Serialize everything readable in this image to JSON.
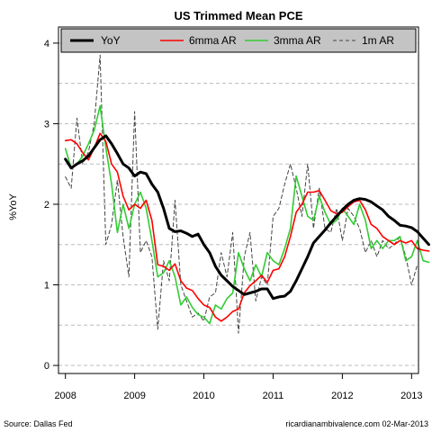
{
  "chart_data": {
    "type": "line",
    "title": "US Trimmed Mean PCE",
    "xlabel": "",
    "ylabel": "%YoY",
    "xlim": [
      2007.9,
      2013.1
    ],
    "ylim": [
      -0.1,
      4.2
    ],
    "x_ticks": [
      2008,
      2009,
      2010,
      2011,
      2012,
      2013
    ],
    "y_ticks": [
      0,
      1,
      2,
      3,
      4
    ],
    "y_gridlines": [
      0,
      0.5,
      1,
      1.5,
      2,
      2.5,
      3,
      3.5,
      4
    ],
    "x_start": 2008.0,
    "x_step": 0.08333,
    "legend_position": "top",
    "series": [
      {
        "name": "YoY",
        "color": "#000000",
        "style": "solid-thick",
        "values": [
          2.56,
          2.45,
          2.5,
          2.54,
          2.6,
          2.7,
          2.8,
          2.85,
          2.75,
          2.63,
          2.5,
          2.45,
          2.35,
          2.4,
          2.38,
          2.25,
          2.15,
          1.95,
          1.7,
          1.66,
          1.67,
          1.64,
          1.6,
          1.63,
          1.5,
          1.4,
          1.23,
          1.12,
          1.05,
          0.98,
          0.93,
          0.88,
          0.9,
          0.92,
          0.95,
          0.95,
          0.83,
          0.85,
          0.86,
          0.92,
          1.05,
          1.2,
          1.35,
          1.52,
          1.6,
          1.68,
          1.77,
          1.85,
          1.93,
          2.0,
          2.05,
          2.07,
          2.06,
          2.03,
          1.98,
          1.93,
          1.85,
          1.8,
          1.74,
          1.73,
          1.71,
          1.66,
          1.58,
          1.5
        ]
      },
      {
        "name": "6mma AR",
        "color": "#ff0000",
        "style": "solid",
        "values": [
          2.79,
          2.8,
          2.75,
          2.64,
          2.55,
          2.7,
          2.88,
          2.78,
          2.5,
          2.4,
          2.1,
          1.93,
          2.0,
          1.95,
          2.05,
          1.8,
          1.25,
          1.23,
          1.18,
          1.26,
          1.05,
          0.96,
          0.93,
          0.83,
          0.75,
          0.72,
          0.6,
          0.55,
          0.6,
          0.67,
          0.7,
          0.9,
          0.99,
          1.05,
          1.12,
          1.03,
          1.18,
          1.2,
          1.35,
          1.6,
          1.9,
          2.0,
          2.15,
          2.15,
          2.17,
          2.05,
          1.92,
          1.88,
          1.9,
          1.97,
          2.03,
          2.05,
          1.93,
          1.75,
          1.7,
          1.6,
          1.55,
          1.5,
          1.55,
          1.52,
          1.55,
          1.45,
          1.43,
          1.42
        ]
      },
      {
        "name": "3mma AR",
        "color": "#33cc33",
        "style": "solid",
        "values": [
          2.69,
          2.45,
          2.5,
          2.6,
          2.75,
          2.92,
          3.22,
          2.7,
          2.25,
          1.65,
          2.0,
          1.7,
          2.0,
          2.15,
          1.95,
          1.55,
          1.1,
          1.15,
          1.3,
          1.1,
          0.75,
          0.85,
          0.72,
          0.63,
          0.6,
          0.52,
          0.75,
          0.7,
          0.83,
          0.9,
          1.4,
          1.2,
          1.05,
          1.25,
          1.1,
          1.4,
          1.3,
          1.25,
          1.45,
          1.7,
          2.35,
          2.1,
          1.85,
          1.8,
          2.1,
          1.9,
          1.75,
          1.8,
          1.95,
          1.85,
          1.75,
          2.0,
          1.8,
          1.45,
          1.55,
          1.45,
          1.55,
          1.55,
          1.6,
          1.3,
          1.35,
          1.55,
          1.3,
          1.28
        ]
      },
      {
        "name": "1m AR",
        "color": "#444444",
        "style": "dashed",
        "values": [
          2.34,
          2.2,
          3.07,
          2.5,
          2.65,
          3.0,
          3.85,
          1.5,
          1.75,
          2.3,
          1.6,
          1.1,
          3.15,
          1.4,
          1.55,
          1.35,
          0.45,
          1.3,
          1.05,
          2.05,
          1.0,
          0.8,
          0.6,
          0.65,
          0.55,
          0.85,
          0.9,
          1.4,
          1.1,
          1.65,
          0.4,
          1.35,
          1.65,
          0.8,
          1.1,
          1.0,
          1.85,
          1.95,
          2.25,
          2.5,
          2.2,
          1.85,
          2.5,
          1.7,
          2.2,
          1.7,
          1.65,
          1.95,
          1.55,
          1.95,
          1.85,
          1.7,
          1.4,
          1.55,
          1.35,
          1.55,
          1.45,
          1.5,
          1.6,
          1.35,
          1.0,
          1.25
        ]
      }
    ]
  },
  "footer": {
    "source": "Source: Dallas Fed",
    "credit": "ricardianambivalence.com   02-Mar-2013"
  }
}
